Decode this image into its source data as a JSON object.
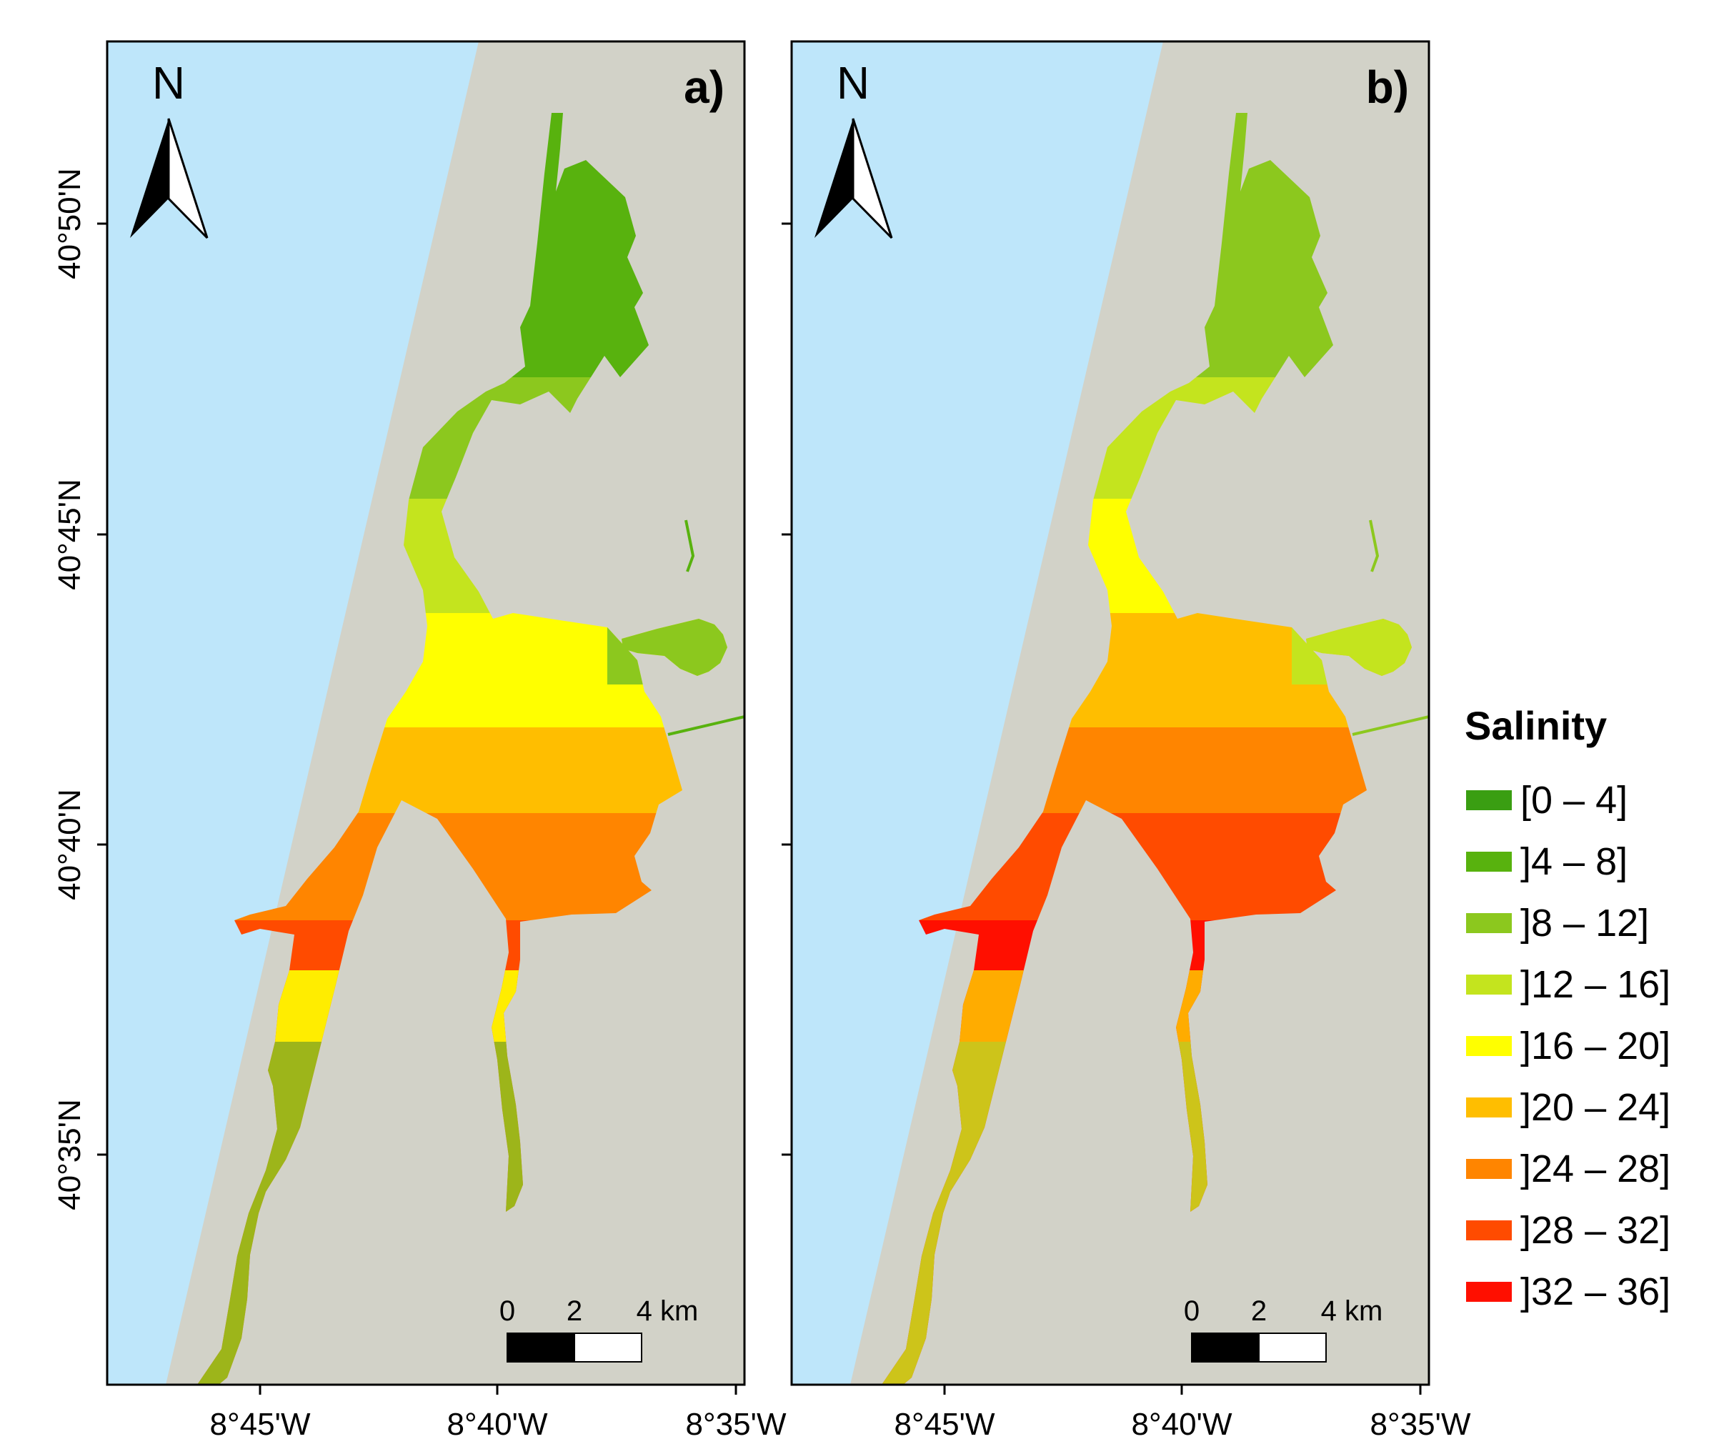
{
  "panels": [
    {
      "id": "a",
      "label": "a)",
      "north": "N",
      "scalebar": {
        "ticks": [
          "0",
          "2",
          "4 km"
        ]
      },
      "zones": [
        "]4 – 8]",
        "]8 – 12]",
        "]12 – 16]",
        "]16 – 20]",
        "]20 – 24]",
        "]24 – 28]",
        "]28 – 32]"
      ]
    },
    {
      "id": "b",
      "label": "b)",
      "north": "N",
      "scalebar": {
        "ticks": [
          "0",
          "2",
          "4 km"
        ]
      },
      "zones": [
        "]8 – 12]",
        "]12 – 16]",
        "]16 – 20]",
        "]20 – 24]",
        "]24 – 28]",
        "]28 – 32]",
        "]32 – 36]"
      ]
    }
  ],
  "axes": {
    "lat_labels": [
      "40°50'N",
      "40°45'N",
      "40°40'N",
      "40°35'N"
    ],
    "lon_labels": [
      "8°45'W",
      "8°40'W",
      "8°35'W"
    ]
  },
  "legend": {
    "title": "Salinity",
    "items": [
      {
        "label": "[0 – 4]",
        "color": "#3a9e12"
      },
      {
        "label": "]4 – 8]",
        "color": "#58b20e"
      },
      {
        "label": "]8 – 12]",
        "color": "#8cc81e"
      },
      {
        "label": "]12 – 16]",
        "color": "#c4e41e"
      },
      {
        "label": "]16 – 20]",
        "color": "#ffff00"
      },
      {
        "label": "]20 – 24]",
        "color": "#ffbe00"
      },
      {
        "label": "]24 – 28]",
        "color": "#ff8500"
      },
      {
        "label": "]28 – 32]",
        "color": "#ff4b00"
      },
      {
        "label": "]32 – 36]",
        "color": "#ff0f00"
      }
    ]
  },
  "colors": {
    "sea": "#bee6fa",
    "land": "#d2d2c8"
  }
}
